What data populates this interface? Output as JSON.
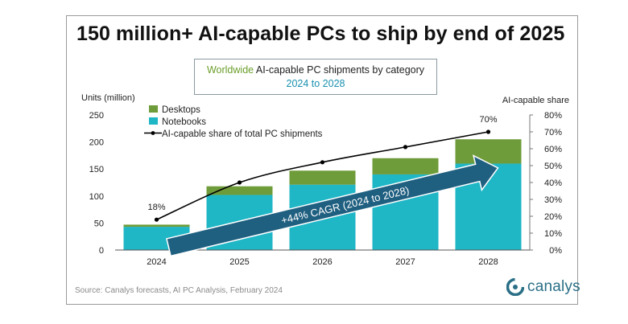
{
  "headline": "150 million+ AI-capable PCs to ship by end of 2025",
  "subtitle": {
    "line1_prefix": "Worldwide",
    "line1_rest": "AI-capable  PC shipments by category",
    "line2": "2024 to 2028"
  },
  "source": "Source: Canalys forecasts, AI PC Analysis, February 2024",
  "brand": {
    "name": "canalys",
    "color": "#2a6f86"
  },
  "chart_data": {
    "type": "bar",
    "stacked": true,
    "categories": [
      "2024",
      "2025",
      "2026",
      "2027",
      "2028"
    ],
    "series": [
      {
        "name": "Notebooks",
        "values": [
          43,
          102,
          121,
          140,
          160
        ],
        "color": "#1fb6c6"
      },
      {
        "name": "Desktops",
        "values": [
          4,
          16,
          26,
          30,
          45
        ],
        "color": "#6f9c3a"
      }
    ],
    "line_series": {
      "name": "AI-capable share of total PC shipments",
      "values": [
        18,
        40,
        52,
        61,
        70
      ],
      "unit": "%",
      "labels": [
        "18%",
        "",
        "",
        "",
        "70%"
      ],
      "color": "#000000"
    },
    "ylabel_left": "Units (million)",
    "ylabel_right": "AI-capable share",
    "ylim_left": [
      0,
      250
    ],
    "ylim_right": [
      0,
      80
    ],
    "yticks_left": [
      "0",
      "50",
      "100",
      "150",
      "200",
      "250"
    ],
    "yticks_right": [
      "0%",
      "10%",
      "20%",
      "30%",
      "40%",
      "50%",
      "60%",
      "70%",
      "80%"
    ],
    "arrow_annotation": {
      "text": "+44% CAGR (2024 to 2028)",
      "color": "#1f5f80"
    },
    "legend": "top-left",
    "grid": false
  }
}
